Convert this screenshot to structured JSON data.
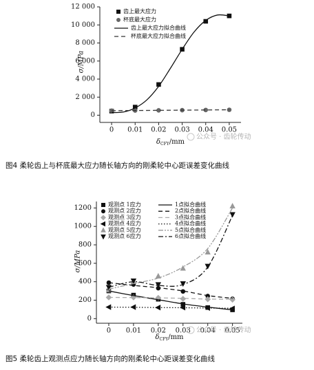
{
  "chart_data": [
    {
      "type": "scatter",
      "ylabel": "σ/MPa",
      "xlabel": {
        "symbol": "δ",
        "subscript": "CFY",
        "unit": "/mm"
      },
      "x": [
        0,
        0.01,
        0.02,
        0.03,
        0.04,
        0.05
      ],
      "xlim": [
        -0.005,
        0.055
      ],
      "ylim": [
        -800,
        12000
      ],
      "xticks": [
        0,
        0.01,
        0.02,
        0.03,
        0.04,
        0.05
      ],
      "yticks": [
        0,
        {
          "value": 2000,
          "label": "2 000"
        },
        {
          "value": 4000,
          "label": "4 000"
        },
        {
          "value": 6000,
          "label": "6 000"
        },
        {
          "value": 8000,
          "label": "8 000"
        },
        {
          "value": 10000,
          "label": "10 000"
        },
        {
          "value": 12000,
          "label": "12 000"
        }
      ],
      "legend_columns": 1,
      "series": [
        {
          "name": "齿上最大应力",
          "color": "#111111",
          "marker": "square",
          "values": [
            450,
            900,
            3400,
            7300,
            10400,
            11000
          ]
        },
        {
          "name": "杯底最大应力",
          "color": "#666666",
          "marker": "circle",
          "values": [
            500,
            520,
            540,
            560,
            580,
            600
          ]
        },
        {
          "name": "齿上最大应力拟合曲线",
          "color": "#111111",
          "line": "solid",
          "x": [
            0,
            0.005,
            0.01,
            0.015,
            0.02,
            0.025,
            0.03,
            0.035,
            0.04,
            0.045,
            0.05
          ],
          "values": [
            300,
            350,
            800,
            1700,
            3200,
            5200,
            7300,
            9200,
            10500,
            11100,
            11000
          ]
        },
        {
          "name": "杯底最大应力拟合曲线",
          "color": "#333333",
          "line": "dashed",
          "values": [
            500,
            520,
            540,
            560,
            580,
            600
          ]
        }
      ],
      "watermark": "公众号 · 齿轮传动",
      "caption": "图4 柔轮齿上与杯底最大应力随长轴方向的刚柔轮中心距误差变化曲线"
    },
    {
      "type": "scatter",
      "ylabel": "σ/MPa",
      "xlabel": {
        "symbol": "δ",
        "subscript": "CFY",
        "unit": "/mm"
      },
      "x": [
        0,
        0.01,
        0.02,
        0.03,
        0.04,
        0.05
      ],
      "xlim": [
        -0.005,
        0.054
      ],
      "ylim": [
        -50,
        1270
      ],
      "xticks": [
        0,
        0.01,
        0.02,
        0.03,
        0.04,
        0.05
      ],
      "yticks": [
        0,
        200,
        400,
        600,
        800,
        1000,
        1200
      ],
      "legend_columns": 2,
      "series": [
        {
          "name": "观测点 1应力",
          "color": "#111111",
          "marker": "square",
          "values": [
            300,
            255,
            210,
            155,
            120,
            95
          ]
        },
        {
          "name": "观测点 2应力",
          "color": "#111111",
          "marker": "circle",
          "values": [
            390,
            370,
            330,
            295,
            245,
            215
          ]
        },
        {
          "name": "观测点 3应力",
          "color": "#aaaaaa",
          "marker": "diamond",
          "values": [
            230,
            230,
            225,
            215,
            210,
            205
          ]
        },
        {
          "name": "观测点 4应力",
          "color": "#111111",
          "marker": "triangle-left",
          "values": [
            125,
            125,
            120,
            120,
            115,
            110
          ]
        },
        {
          "name": "观测点 5应力",
          "color": "#999999",
          "marker": "triangle-up",
          "values": [
            310,
            400,
            460,
            545,
            720,
            1220
          ]
        },
        {
          "name": "观测点 6应力",
          "color": "#111111",
          "marker": "triangle-down",
          "values": [
            340,
            410,
            370,
            380,
            570,
            1130
          ]
        },
        {
          "name": "1点拟合曲线",
          "color": "#111111",
          "line": "solid",
          "values": [
            300,
            250,
            205,
            160,
            125,
            95
          ]
        },
        {
          "name": "2点拟合曲线",
          "color": "#111111",
          "line": "dashed",
          "values": [
            390,
            360,
            335,
            300,
            250,
            220
          ]
        },
        {
          "name": "3点拟合曲线",
          "color": "#aaaaaa",
          "line": "dashed",
          "values": [
            230,
            228,
            225,
            220,
            212,
            210
          ]
        },
        {
          "name": "4点拟合曲线",
          "color": "#111111",
          "line": "dotted",
          "values": [
            125,
            123,
            120,
            118,
            115,
            112
          ]
        },
        {
          "name": "5点拟合曲线",
          "color": "#999999",
          "line": "dashdotdot",
          "values": [
            320,
            380,
            440,
            560,
            760,
            1200
          ]
        },
        {
          "name": "6点拟合曲线",
          "color": "#111111",
          "line": "dashdot",
          "values": [
            340,
            400,
            360,
            370,
            560,
            1120
          ]
        }
      ],
      "watermark": "公众号 · 齿轮传动",
      "caption": "图5 柔轮齿上观测点应力随长轴方向的刚柔轮中心距误差变化曲线"
    }
  ]
}
